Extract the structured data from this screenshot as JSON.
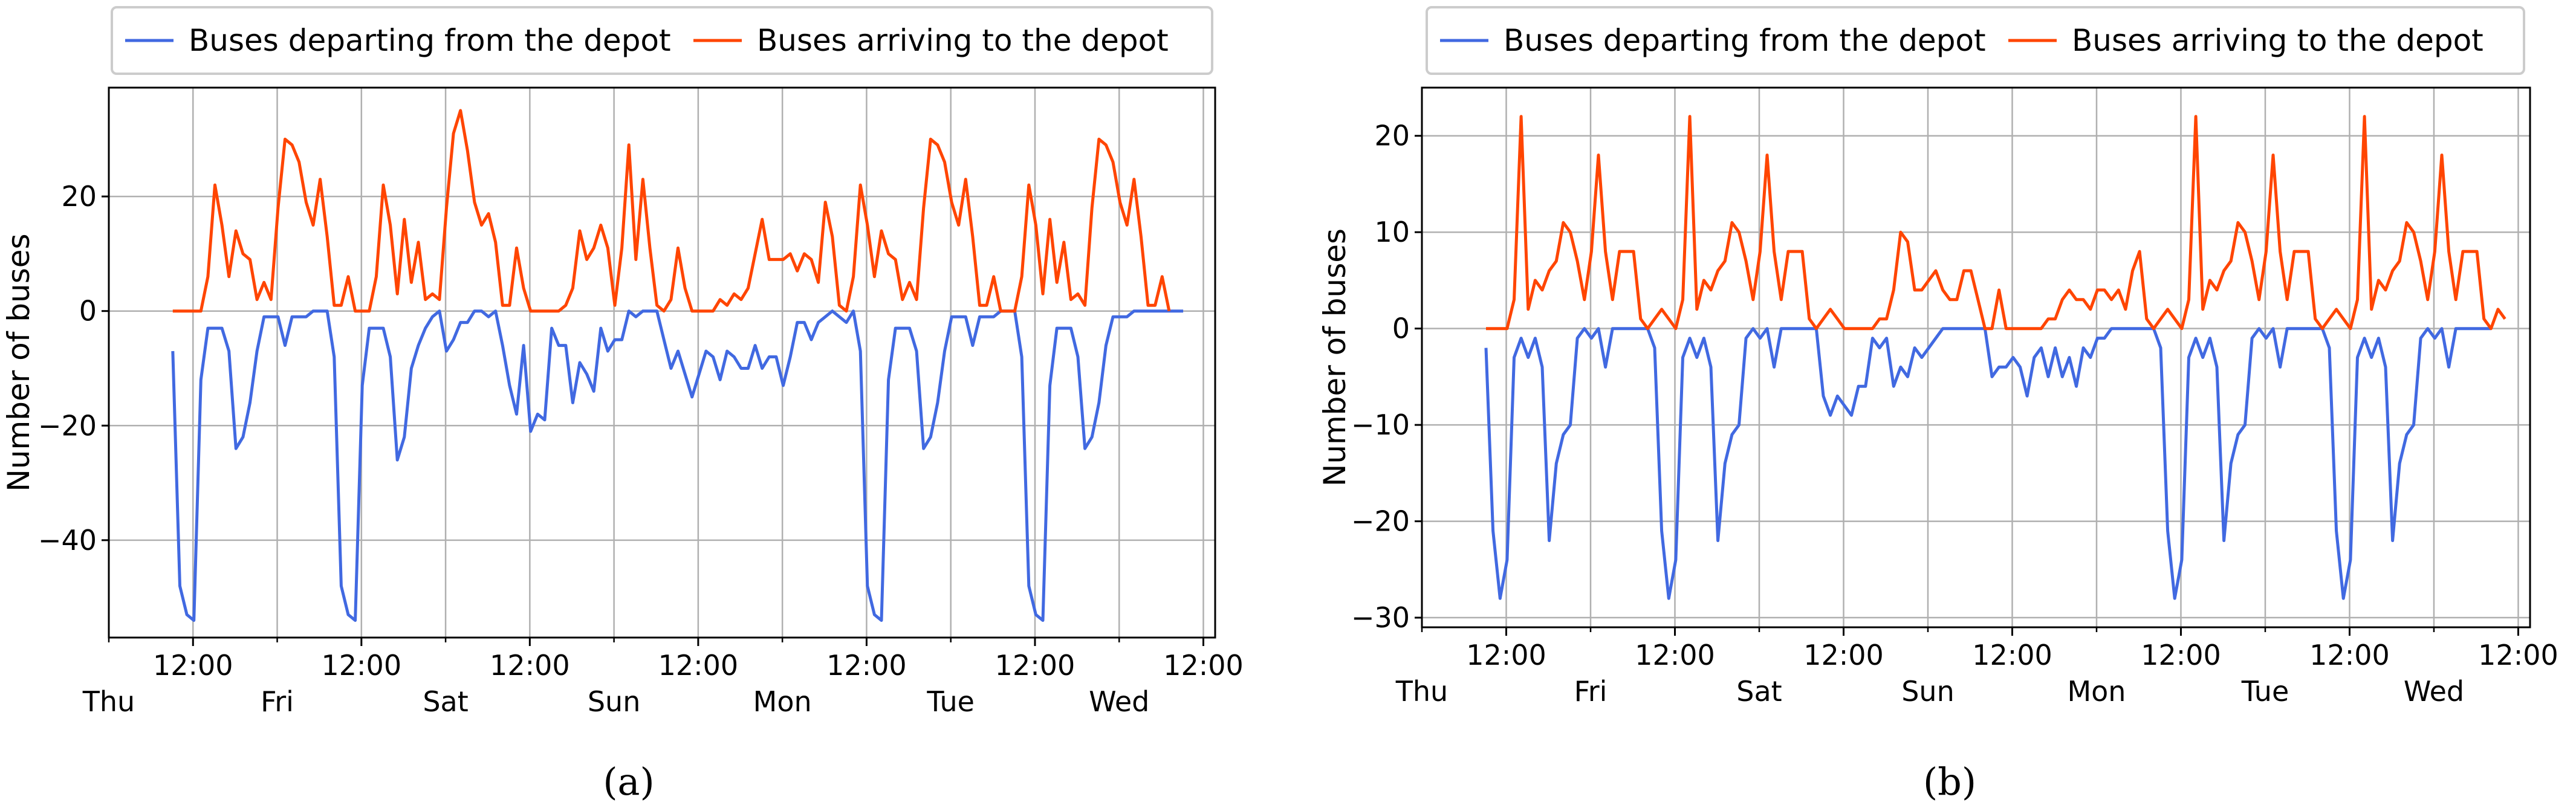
{
  "chart_data": [
    {
      "type": "line",
      "panel_label": "(a)",
      "ylabel": "Number of buses",
      "ylim": [
        -57,
        39
      ],
      "yticks": [
        20,
        0,
        -20,
        -40
      ],
      "xlim": [
        0,
        6.57
      ],
      "time_ticks": [
        0.5,
        1.5,
        2.5,
        3.5,
        4.5,
        5.5,
        6.5
      ],
      "time_tick_label": "12:00",
      "day_ticks": [
        0,
        1,
        2,
        3,
        4,
        5,
        6
      ],
      "day_labels": [
        "Thu",
        "Fri",
        "Sat",
        "Sun",
        "Mon",
        "Tue",
        "Wed"
      ],
      "grid": true,
      "legend_position": "top",
      "series": [
        {
          "name": "Buses departing from the depot",
          "color": "#4169e1",
          "values": [
            -7,
            -48,
            -53,
            -54,
            -12,
            -3,
            -3,
            -3,
            -7,
            -24,
            -22,
            -16,
            -7,
            -1,
            -1,
            -1,
            -6,
            -1,
            -1,
            -1,
            0,
            0,
            0,
            -8,
            -48,
            -53,
            -54,
            -13,
            -3,
            -3,
            -3,
            -8,
            -26,
            -22,
            -10,
            -6,
            -3,
            -1,
            0,
            -7,
            -5,
            -2,
            -2,
            0,
            0,
            -1,
            0,
            -6,
            -13,
            -18,
            -6,
            -21,
            -18,
            -19,
            -3,
            -6,
            -6,
            -16,
            -9,
            -11,
            -14,
            -3,
            -7,
            -5,
            -5,
            0,
            -1,
            0,
            0,
            0,
            -5,
            -10,
            -7,
            -11,
            -15,
            -11,
            -7,
            -8,
            -12,
            -7,
            -8,
            -10,
            -10,
            -6,
            -10,
            -8,
            -8,
            -13,
            -8,
            -2,
            -2,
            -5,
            -2,
            -1,
            0,
            -1,
            -2,
            0,
            -7,
            -48,
            -53,
            -54,
            -12,
            -3,
            -3,
            -3,
            -7,
            -24,
            -22,
            -16,
            -7,
            -1,
            -1,
            -1,
            -6,
            -1,
            -1,
            -1,
            0,
            0,
            0,
            -8,
            -48,
            -53,
            -54,
            -13,
            -3,
            -3,
            -3,
            -8,
            -24,
            -22,
            -16,
            -6,
            -1,
            -1,
            -1,
            0,
            0,
            0,
            0,
            0,
            0,
            0,
            0
          ]
        },
        {
          "name": "Buses arriving to the depot",
          "color": "#ff4500",
          "values": [
            0,
            0,
            0,
            0,
            0,
            6,
            22,
            15,
            6,
            14,
            10,
            9,
            2,
            5,
            2,
            18,
            30,
            29,
            26,
            19,
            15,
            23,
            13,
            1,
            1,
            6,
            0,
            0,
            0,
            6,
            22,
            15,
            3,
            16,
            5,
            12,
            2,
            3,
            2,
            18,
            31,
            35,
            28,
            19,
            15,
            17,
            12,
            1,
            1,
            11,
            4,
            0,
            0,
            0,
            0,
            0,
            1,
            4,
            14,
            9,
            11,
            15,
            11,
            1,
            11,
            29,
            9,
            23,
            11,
            1,
            0,
            2,
            11,
            4,
            0,
            0,
            0,
            0,
            2,
            1,
            3,
            2,
            4,
            10,
            16,
            9,
            9,
            9,
            10,
            7,
            10,
            9,
            5,
            19,
            13,
            1,
            0,
            6,
            22,
            15,
            6,
            14,
            10,
            9,
            2,
            5,
            2,
            18,
            30,
            29,
            26,
            19,
            15,
            23,
            13,
            1,
            1,
            6,
            0,
            0,
            0,
            6,
            22,
            15,
            3,
            16,
            5,
            12,
            2,
            3,
            1,
            18,
            30,
            29,
            26,
            19,
            15,
            23,
            13,
            1,
            1,
            6,
            0
          ]
        }
      ]
    },
    {
      "type": "line",
      "panel_label": "(b)",
      "ylabel": "Number of buses",
      "ylim": [
        -31,
        25
      ],
      "yticks": [
        20,
        10,
        0,
        -10,
        -20,
        -30
      ],
      "xlim": [
        0,
        6.57
      ],
      "time_ticks": [
        0.5,
        1.5,
        2.5,
        3.5,
        4.5,
        5.5,
        6.5
      ],
      "time_tick_label": "12:00",
      "day_ticks": [
        0,
        1,
        2,
        3,
        4,
        5,
        6
      ],
      "day_labels": [
        "Thu",
        "Fri",
        "Sat",
        "Sun",
        "Mon",
        "Tue",
        "Wed"
      ],
      "grid": true,
      "legend_position": "top",
      "series": [
        {
          "name": "Buses departing from the depot",
          "color": "#4169e1",
          "values": [
            -2,
            -21,
            -28,
            -24,
            -3,
            -1,
            -3,
            -1,
            -4,
            -22,
            -14,
            -11,
            -10,
            -1,
            0,
            -1,
            0,
            -4,
            0,
            0,
            0,
            0,
            0,
            0,
            -2,
            -21,
            -28,
            -24,
            -3,
            -1,
            -3,
            -1,
            -4,
            -22,
            -14,
            -11,
            -10,
            -1,
            0,
            -1,
            0,
            -4,
            0,
            0,
            0,
            0,
            0,
            0,
            -7,
            -9,
            -7,
            -8,
            -9,
            -6,
            -6,
            -1,
            -2,
            -1,
            -6,
            -4,
            -5,
            -2,
            -3,
            -2,
            -1,
            0,
            0,
            0,
            0,
            0,
            0,
            0,
            -5,
            -4,
            -4,
            -3,
            -4,
            -7,
            -3,
            -2,
            -5,
            -2,
            -5,
            -3,
            -6,
            -2,
            -3,
            -1,
            -1,
            0,
            0,
            0,
            0,
            0,
            0,
            0,
            -2,
            -21,
            -28,
            -24,
            -3,
            -1,
            -3,
            -1,
            -4,
            -22,
            -14,
            -11,
            -10,
            -1,
            0,
            -1,
            0,
            -4,
            0,
            0,
            0,
            0,
            0,
            0,
            -2,
            -21,
            -28,
            -24,
            -3,
            -1,
            -3,
            -1,
            -4,
            -22,
            -14,
            -11,
            -10,
            -1,
            0,
            -1,
            0,
            -4,
            0,
            0,
            0,
            0,
            0,
            0
          ]
        },
        {
          "name": "Buses arriving to the depot",
          "color": "#ff4500",
          "values": [
            0,
            0,
            0,
            0,
            3,
            22,
            2,
            5,
            4,
            6,
            7,
            11,
            10,
            7,
            3,
            8,
            18,
            8,
            3,
            8,
            8,
            8,
            1,
            0,
            1,
            2,
            1,
            0,
            3,
            22,
            2,
            5,
            4,
            6,
            7,
            11,
            10,
            7,
            3,
            8,
            18,
            8,
            3,
            8,
            8,
            8,
            1,
            0,
            1,
            2,
            1,
            0,
            0,
            0,
            0,
            0,
            1,
            1,
            4,
            10,
            9,
            4,
            4,
            5,
            6,
            4,
            3,
            3,
            6,
            6,
            3,
            0,
            0,
            4,
            0,
            0,
            0,
            0,
            0,
            0,
            1,
            1,
            3,
            4,
            3,
            3,
            2,
            4,
            4,
            3,
            4,
            2,
            6,
            8,
            1,
            0,
            1,
            2,
            1,
            0,
            3,
            22,
            2,
            5,
            4,
            6,
            7,
            11,
            10,
            7,
            3,
            8,
            18,
            8,
            3,
            8,
            8,
            8,
            1,
            0,
            1,
            2,
            1,
            0,
            3,
            22,
            2,
            5,
            4,
            6,
            7,
            11,
            10,
            7,
            3,
            8,
            18,
            8,
            3,
            8,
            8,
            8,
            1,
            0,
            2,
            1
          ]
        }
      ]
    }
  ]
}
